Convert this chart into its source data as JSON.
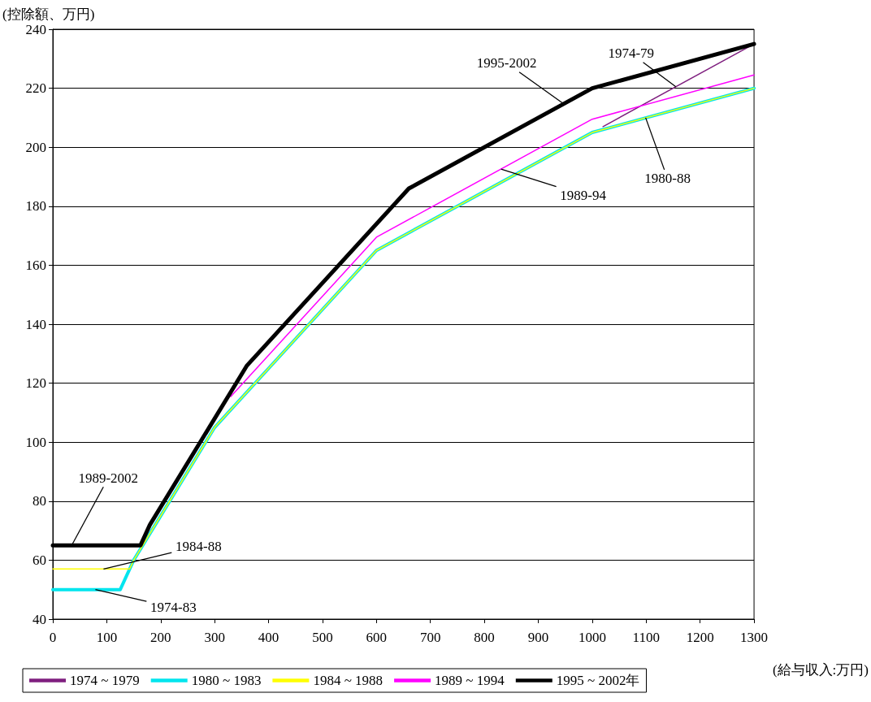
{
  "chart_data": {
    "type": "line",
    "ylabel": "(控除額、万円)",
    "xlabel": "(給与収入:万円)",
    "xlim": [
      0,
      1300
    ],
    "xticks": [
      0,
      100,
      200,
      300,
      400,
      500,
      600,
      700,
      800,
      900,
      1000,
      1100,
      1200,
      1300
    ],
    "ylim": [
      40,
      240
    ],
    "yticks": [
      40,
      60,
      80,
      100,
      120,
      140,
      160,
      180,
      200,
      220,
      240
    ],
    "grid": "y",
    "legend": "bottom",
    "marker": "none",
    "line_style": "solid",
    "series": [
      {
        "name": "1974 ~ 1979",
        "color": "#7f1f7f",
        "x": [
          1020,
          1300
        ],
        "values": [
          207,
          235
        ]
      },
      {
        "name": "1980 ~ 1983",
        "color": "#00e5ee",
        "x": [
          0,
          125,
          150,
          300,
          600,
          1000,
          1300
        ],
        "values": [
          50,
          50,
          60,
          105,
          165,
          205,
          220
        ]
      },
      {
        "name": "1984 ~ 1988",
        "color": "#ffff00",
        "x": [
          0,
          142.5,
          150,
          300,
          600,
          1000,
          1300
        ],
        "values": [
          57,
          57,
          60,
          105,
          165,
          205,
          220
        ]
      },
      {
        "name": "1989 ~ 1994",
        "color": "#ff00ff",
        "x": [
          330,
          600,
          1000,
          1300
        ],
        "values": [
          115.5,
          169.5,
          209.5,
          224.5
        ]
      },
      {
        "name": "1995 ~ 2002年",
        "color": "#000000",
        "x": [
          0,
          162.5,
          180,
          360,
          660,
          1000,
          1300
        ],
        "values": [
          65,
          65,
          72,
          126,
          186,
          220,
          235
        ]
      }
    ],
    "annotations": [
      {
        "text": "1974-79",
        "x": 1155,
        "y": 220.5
      },
      {
        "text": "1995-2002",
        "x": 947,
        "y": 214.7
      },
      {
        "text": "1989-94",
        "x": 831,
        "y": 192.6
      },
      {
        "text": "1980-88",
        "x": 1099,
        "y": 210
      },
      {
        "text": "1989-2002",
        "x": 35,
        "y": 65
      },
      {
        "text": "1984-88",
        "x": 94,
        "y": 57
      },
      {
        "text": "1974-83",
        "x": 79,
        "y": 50
      }
    ]
  }
}
